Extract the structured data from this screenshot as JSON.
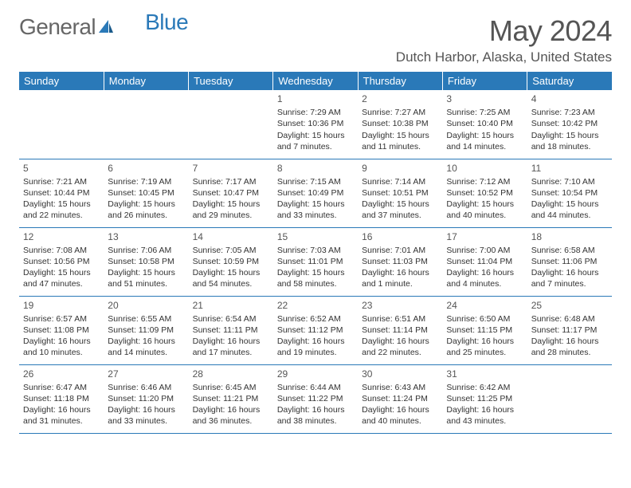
{
  "logo": {
    "text1": "General",
    "text2": "Blue"
  },
  "title": "May 2024",
  "location": "Dutch Harbor, Alaska, United States",
  "colors": {
    "header_bg": "#2a79b8",
    "header_text": "#ffffff",
    "border": "#2a79b8",
    "body_text": "#333333",
    "daynum_text": "#555555",
    "logo_gray": "#666666",
    "logo_blue": "#2a79b8"
  },
  "weekdays": [
    "Sunday",
    "Monday",
    "Tuesday",
    "Wednesday",
    "Thursday",
    "Friday",
    "Saturday"
  ],
  "weeks": [
    [
      {},
      {},
      {},
      {
        "num": "1",
        "sunrise": "Sunrise: 7:29 AM",
        "sunset": "Sunset: 10:36 PM",
        "day1": "Daylight: 15 hours",
        "day2": "and 7 minutes."
      },
      {
        "num": "2",
        "sunrise": "Sunrise: 7:27 AM",
        "sunset": "Sunset: 10:38 PM",
        "day1": "Daylight: 15 hours",
        "day2": "and 11 minutes."
      },
      {
        "num": "3",
        "sunrise": "Sunrise: 7:25 AM",
        "sunset": "Sunset: 10:40 PM",
        "day1": "Daylight: 15 hours",
        "day2": "and 14 minutes."
      },
      {
        "num": "4",
        "sunrise": "Sunrise: 7:23 AM",
        "sunset": "Sunset: 10:42 PM",
        "day1": "Daylight: 15 hours",
        "day2": "and 18 minutes."
      }
    ],
    [
      {
        "num": "5",
        "sunrise": "Sunrise: 7:21 AM",
        "sunset": "Sunset: 10:44 PM",
        "day1": "Daylight: 15 hours",
        "day2": "and 22 minutes."
      },
      {
        "num": "6",
        "sunrise": "Sunrise: 7:19 AM",
        "sunset": "Sunset: 10:45 PM",
        "day1": "Daylight: 15 hours",
        "day2": "and 26 minutes."
      },
      {
        "num": "7",
        "sunrise": "Sunrise: 7:17 AM",
        "sunset": "Sunset: 10:47 PM",
        "day1": "Daylight: 15 hours",
        "day2": "and 29 minutes."
      },
      {
        "num": "8",
        "sunrise": "Sunrise: 7:15 AM",
        "sunset": "Sunset: 10:49 PM",
        "day1": "Daylight: 15 hours",
        "day2": "and 33 minutes."
      },
      {
        "num": "9",
        "sunrise": "Sunrise: 7:14 AM",
        "sunset": "Sunset: 10:51 PM",
        "day1": "Daylight: 15 hours",
        "day2": "and 37 minutes."
      },
      {
        "num": "10",
        "sunrise": "Sunrise: 7:12 AM",
        "sunset": "Sunset: 10:52 PM",
        "day1": "Daylight: 15 hours",
        "day2": "and 40 minutes."
      },
      {
        "num": "11",
        "sunrise": "Sunrise: 7:10 AM",
        "sunset": "Sunset: 10:54 PM",
        "day1": "Daylight: 15 hours",
        "day2": "and 44 minutes."
      }
    ],
    [
      {
        "num": "12",
        "sunrise": "Sunrise: 7:08 AM",
        "sunset": "Sunset: 10:56 PM",
        "day1": "Daylight: 15 hours",
        "day2": "and 47 minutes."
      },
      {
        "num": "13",
        "sunrise": "Sunrise: 7:06 AM",
        "sunset": "Sunset: 10:58 PM",
        "day1": "Daylight: 15 hours",
        "day2": "and 51 minutes."
      },
      {
        "num": "14",
        "sunrise": "Sunrise: 7:05 AM",
        "sunset": "Sunset: 10:59 PM",
        "day1": "Daylight: 15 hours",
        "day2": "and 54 minutes."
      },
      {
        "num": "15",
        "sunrise": "Sunrise: 7:03 AM",
        "sunset": "Sunset: 11:01 PM",
        "day1": "Daylight: 15 hours",
        "day2": "and 58 minutes."
      },
      {
        "num": "16",
        "sunrise": "Sunrise: 7:01 AM",
        "sunset": "Sunset: 11:03 PM",
        "day1": "Daylight: 16 hours",
        "day2": "and 1 minute."
      },
      {
        "num": "17",
        "sunrise": "Sunrise: 7:00 AM",
        "sunset": "Sunset: 11:04 PM",
        "day1": "Daylight: 16 hours",
        "day2": "and 4 minutes."
      },
      {
        "num": "18",
        "sunrise": "Sunrise: 6:58 AM",
        "sunset": "Sunset: 11:06 PM",
        "day1": "Daylight: 16 hours",
        "day2": "and 7 minutes."
      }
    ],
    [
      {
        "num": "19",
        "sunrise": "Sunrise: 6:57 AM",
        "sunset": "Sunset: 11:08 PM",
        "day1": "Daylight: 16 hours",
        "day2": "and 10 minutes."
      },
      {
        "num": "20",
        "sunrise": "Sunrise: 6:55 AM",
        "sunset": "Sunset: 11:09 PM",
        "day1": "Daylight: 16 hours",
        "day2": "and 14 minutes."
      },
      {
        "num": "21",
        "sunrise": "Sunrise: 6:54 AM",
        "sunset": "Sunset: 11:11 PM",
        "day1": "Daylight: 16 hours",
        "day2": "and 17 minutes."
      },
      {
        "num": "22",
        "sunrise": "Sunrise: 6:52 AM",
        "sunset": "Sunset: 11:12 PM",
        "day1": "Daylight: 16 hours",
        "day2": "and 19 minutes."
      },
      {
        "num": "23",
        "sunrise": "Sunrise: 6:51 AM",
        "sunset": "Sunset: 11:14 PM",
        "day1": "Daylight: 16 hours",
        "day2": "and 22 minutes."
      },
      {
        "num": "24",
        "sunrise": "Sunrise: 6:50 AM",
        "sunset": "Sunset: 11:15 PM",
        "day1": "Daylight: 16 hours",
        "day2": "and 25 minutes."
      },
      {
        "num": "25",
        "sunrise": "Sunrise: 6:48 AM",
        "sunset": "Sunset: 11:17 PM",
        "day1": "Daylight: 16 hours",
        "day2": "and 28 minutes."
      }
    ],
    [
      {
        "num": "26",
        "sunrise": "Sunrise: 6:47 AM",
        "sunset": "Sunset: 11:18 PM",
        "day1": "Daylight: 16 hours",
        "day2": "and 31 minutes."
      },
      {
        "num": "27",
        "sunrise": "Sunrise: 6:46 AM",
        "sunset": "Sunset: 11:20 PM",
        "day1": "Daylight: 16 hours",
        "day2": "and 33 minutes."
      },
      {
        "num": "28",
        "sunrise": "Sunrise: 6:45 AM",
        "sunset": "Sunset: 11:21 PM",
        "day1": "Daylight: 16 hours",
        "day2": "and 36 minutes."
      },
      {
        "num": "29",
        "sunrise": "Sunrise: 6:44 AM",
        "sunset": "Sunset: 11:22 PM",
        "day1": "Daylight: 16 hours",
        "day2": "and 38 minutes."
      },
      {
        "num": "30",
        "sunrise": "Sunrise: 6:43 AM",
        "sunset": "Sunset: 11:24 PM",
        "day1": "Daylight: 16 hours",
        "day2": "and 40 minutes."
      },
      {
        "num": "31",
        "sunrise": "Sunrise: 6:42 AM",
        "sunset": "Sunset: 11:25 PM",
        "day1": "Daylight: 16 hours",
        "day2": "and 43 minutes."
      },
      {}
    ]
  ]
}
